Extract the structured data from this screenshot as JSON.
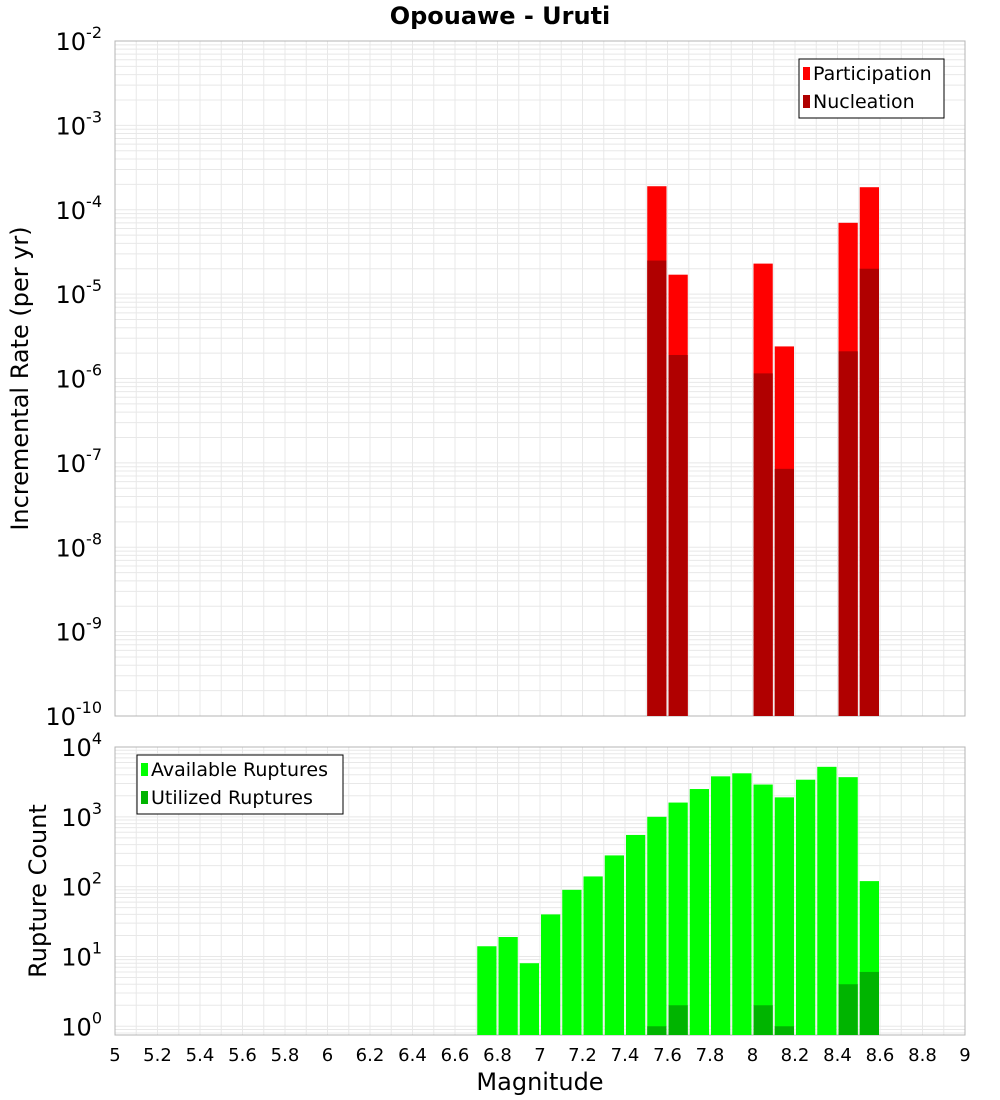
{
  "chart_title": "Opouawe - Uruti",
  "colors": {
    "participation": "#ff0000",
    "nucleation": "#b00000",
    "available": "#00ff00",
    "utilized": "#00b400",
    "grid": "#e8e8e8",
    "frame": "#b4b4b4"
  },
  "x_axis": {
    "label": "Magnitude",
    "range": [
      5,
      9
    ],
    "tick_labels": [
      "5",
      "5.2",
      "5.4",
      "5.6",
      "5.8",
      "6",
      "6.2",
      "6.4",
      "6.6",
      "6.8",
      "7",
      "7.2",
      "7.4",
      "7.6",
      "7.8",
      "8",
      "8.2",
      "8.4",
      "8.6",
      "8.8",
      "9"
    ]
  },
  "chart_data": [
    {
      "type": "bar",
      "title": "Opouawe - Uruti",
      "xlabel": "Magnitude",
      "ylabel": "Incremental Rate (per yr)",
      "yscale": "log",
      "xlim": [
        5,
        9
      ],
      "ylim": [
        1e-10,
        0.01
      ],
      "y_tick_exponents": [
        "-10",
        "-9",
        "-8",
        "-7",
        "-6",
        "-5",
        "-4",
        "-3",
        "-2"
      ],
      "legend_position": "top-right",
      "x": [
        7.55,
        7.65,
        8.05,
        8.15,
        8.45,
        8.55
      ],
      "series": [
        {
          "name": "Participation",
          "color": "#ff0000",
          "values": [
            0.00019,
            1.7e-05,
            2.3e-05,
            2.4e-06,
            7e-05,
            0.000185
          ]
        },
        {
          "name": "Nucleation",
          "color": "#b00000",
          "values": [
            2.5e-05,
            1.9e-06,
            1.15e-06,
            8.5e-08,
            2.1e-06,
            2e-05
          ]
        }
      ]
    },
    {
      "type": "bar",
      "xlabel": "Magnitude",
      "ylabel": "Rupture Count",
      "yscale": "log",
      "xlim": [
        5,
        9
      ],
      "ylim": [
        0.75,
        10000
      ],
      "y_tick_exponents": [
        "0",
        "1",
        "2",
        "3",
        "4"
      ],
      "legend_position": "top-left",
      "x": [
        6.75,
        6.85,
        6.95,
        7.05,
        7.15,
        7.25,
        7.35,
        7.45,
        7.55,
        7.65,
        7.75,
        7.85,
        7.95,
        8.05,
        8.15,
        8.25,
        8.35,
        8.45,
        8.55
      ],
      "series": [
        {
          "name": "Available Ruptures",
          "color": "#00ff00",
          "values": [
            14,
            19,
            8,
            40,
            90,
            140,
            280,
            550,
            1000,
            1600,
            2500,
            3800,
            4200,
            2900,
            1900,
            3400,
            5200,
            3700,
            120
          ]
        },
        {
          "name": "Utilized Ruptures",
          "color": "#00b400",
          "values": [
            0,
            0,
            0,
            0,
            0,
            0,
            0,
            0,
            1,
            2,
            0,
            0,
            0,
            2,
            1,
            0,
            0,
            4,
            6
          ]
        }
      ]
    }
  ]
}
